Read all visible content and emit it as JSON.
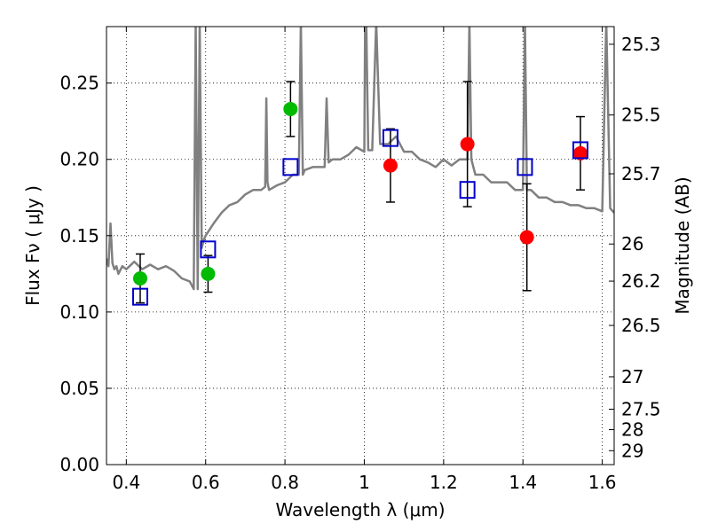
{
  "chart_data": {
    "type": "scatter",
    "xlabel": "Wavelength  λ (μm)",
    "ylabel": "Flux  Fν  ( μJy )",
    "ylabel2": "Magnitude (AB)",
    "xlim": [
      0.35,
      1.63
    ],
    "ylim": [
      0.0,
      0.287
    ],
    "grid": true,
    "x_ticks": [
      0.4,
      0.6,
      0.8,
      1.0,
      1.2,
      1.4,
      1.6
    ],
    "x_tick_labels": [
      "0.4",
      "0.6",
      "0.8",
      "1",
      "1.2",
      "1.4",
      "1.6"
    ],
    "y_ticks": [
      0.0,
      0.05,
      0.1,
      0.15,
      0.2,
      0.25
    ],
    "y_tick_labels": [
      "0.00",
      "0.05",
      "0.10",
      "0.15",
      "0.20",
      "0.25"
    ],
    "mag_ticks": [
      25.3,
      25.5,
      25.7,
      26,
      26.2,
      26.5,
      27,
      27.5,
      28,
      29
    ],
    "mag_tick_labels": [
      "25.3",
      "25.5",
      "25.7",
      "26",
      "26.2",
      "26.5",
      "27",
      "27.5",
      "28",
      "29"
    ],
    "series": [
      {
        "marker": "circle",
        "color": "#00bb00",
        "points": [
          {
            "x": 0.435,
            "y": 0.122,
            "err_lo": 0.016,
            "err_hi": 0.016
          },
          {
            "x": 0.606,
            "y": 0.125,
            "err_lo": 0.012,
            "err_hi": 0.012
          },
          {
            "x": 0.814,
            "y": 0.233,
            "err_lo": 0.018,
            "err_hi": 0.018
          }
        ]
      },
      {
        "marker": "circle",
        "color": "#ff0000",
        "points": [
          {
            "x": 1.066,
            "y": 0.196,
            "err_lo": 0.024,
            "err_hi": 0.024
          },
          {
            "x": 1.26,
            "y": 0.21,
            "err_lo": 0.041,
            "err_hi": 0.041
          },
          {
            "x": 1.41,
            "y": 0.149,
            "err_lo": 0.035,
            "err_hi": 0.035
          },
          {
            "x": 1.545,
            "y": 0.204,
            "err_lo": 0.024,
            "err_hi": 0.024
          }
        ]
      },
      {
        "marker": "open-square",
        "color": "#0000cc",
        "points": [
          {
            "x": 0.435,
            "y": 0.11
          },
          {
            "x": 0.606,
            "y": 0.141
          },
          {
            "x": 0.814,
            "y": 0.195
          },
          {
            "x": 1.066,
            "y": 0.214
          },
          {
            "x": 1.26,
            "y": 0.18
          },
          {
            "x": 1.405,
            "y": 0.195
          },
          {
            "x": 1.545,
            "y": 0.206
          }
        ]
      },
      {
        "type": "line",
        "color": "#808080",
        "x": [
          0.35,
          0.355,
          0.36,
          0.365,
          0.37,
          0.375,
          0.38,
          0.39,
          0.4,
          0.42,
          0.44,
          0.46,
          0.48,
          0.5,
          0.52,
          0.54,
          0.56,
          0.57,
          0.575,
          0.58,
          0.585,
          0.59,
          0.595,
          0.6,
          0.62,
          0.64,
          0.66,
          0.68,
          0.7,
          0.72,
          0.74,
          0.75,
          0.753,
          0.756,
          0.76,
          0.78,
          0.8,
          0.82,
          0.835,
          0.84,
          0.845,
          0.85,
          0.87,
          0.89,
          0.9,
          0.905,
          0.91,
          0.92,
          0.94,
          0.96,
          0.98,
          1.0,
          1.002,
          1.005,
          1.01,
          1.02,
          1.03,
          1.04,
          1.06,
          1.08,
          1.1,
          1.12,
          1.14,
          1.16,
          1.18,
          1.2,
          1.22,
          1.24,
          1.26,
          1.265,
          1.27,
          1.28,
          1.3,
          1.32,
          1.34,
          1.36,
          1.38,
          1.4,
          1.405,
          1.41,
          1.42,
          1.44,
          1.46,
          1.48,
          1.5,
          1.52,
          1.54,
          1.56,
          1.58,
          1.6,
          1.61,
          1.62,
          1.63
        ],
        "values": [
          0.135,
          0.13,
          0.158,
          0.132,
          0.128,
          0.13,
          0.125,
          0.13,
          0.128,
          0.133,
          0.128,
          0.131,
          0.128,
          0.13,
          0.127,
          0.122,
          0.12,
          0.115,
          0.29,
          0.115,
          0.29,
          0.142,
          0.147,
          0.15,
          0.158,
          0.165,
          0.17,
          0.172,
          0.177,
          0.18,
          0.18,
          0.182,
          0.24,
          0.185,
          0.18,
          0.183,
          0.185,
          0.19,
          0.19,
          0.29,
          0.19,
          0.193,
          0.195,
          0.195,
          0.195,
          0.24,
          0.198,
          0.2,
          0.2,
          0.203,
          0.208,
          0.205,
          0.29,
          0.29,
          0.206,
          0.206,
          0.29,
          0.21,
          0.21,
          0.215,
          0.205,
          0.205,
          0.2,
          0.198,
          0.195,
          0.2,
          0.196,
          0.2,
          0.2,
          0.29,
          0.2,
          0.19,
          0.19,
          0.185,
          0.185,
          0.185,
          0.18,
          0.18,
          0.29,
          0.18,
          0.18,
          0.175,
          0.175,
          0.172,
          0.172,
          0.17,
          0.17,
          0.168,
          0.168,
          0.166,
          0.29,
          0.168,
          0.165
        ]
      }
    ]
  }
}
